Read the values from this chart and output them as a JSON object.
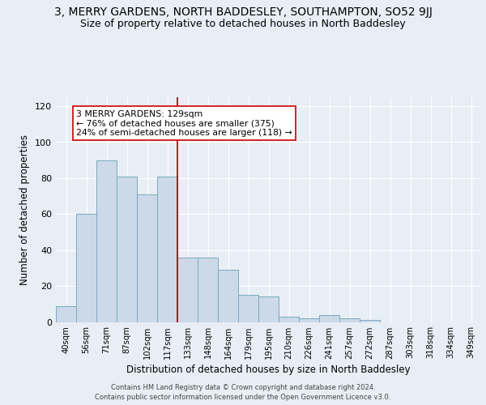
{
  "title": "3, MERRY GARDENS, NORTH BADDESLEY, SOUTHAMPTON, SO52 9JJ",
  "subtitle": "Size of property relative to detached houses in North Baddesley",
  "xlabel": "Distribution of detached houses by size in North Baddesley",
  "ylabel": "Number of detached properties",
  "categories": [
    "40sqm",
    "56sqm",
    "71sqm",
    "87sqm",
    "102sqm",
    "117sqm",
    "133sqm",
    "148sqm",
    "164sqm",
    "179sqm",
    "195sqm",
    "210sqm",
    "226sqm",
    "241sqm",
    "257sqm",
    "272sqm",
    "287sqm",
    "303sqm",
    "318sqm",
    "334sqm",
    "349sqm"
  ],
  "values": [
    9,
    60,
    90,
    81,
    71,
    81,
    36,
    36,
    29,
    15,
    14,
    3,
    2,
    4,
    2,
    1,
    0,
    0,
    0,
    0,
    0
  ],
  "bar_color": "#ccd9e8",
  "bar_edge_color": "#7aaabf",
  "bar_width": 1.0,
  "property_line_x": 6.0,
  "property_line_color": "#aa0000",
  "annotation_text": "3 MERRY GARDENS: 129sqm\n← 76% of detached houses are smaller (375)\n24% of semi-detached houses are larger (118) →",
  "annotation_box_color": "#ffffff",
  "annotation_box_edge": "#cc0000",
  "ylim": [
    0,
    125
  ],
  "yticks": [
    0,
    20,
    40,
    60,
    80,
    100,
    120
  ],
  "bg_color": "#e8eef5",
  "plot_bg_color": "#e8eef5",
  "title_fontsize": 10,
  "subtitle_fontsize": 9,
  "footer_line1": "Contains HM Land Registry data © Crown copyright and database right 2024.",
  "footer_line2": "Contains public sector information licensed under the Open Government Licence v3.0."
}
